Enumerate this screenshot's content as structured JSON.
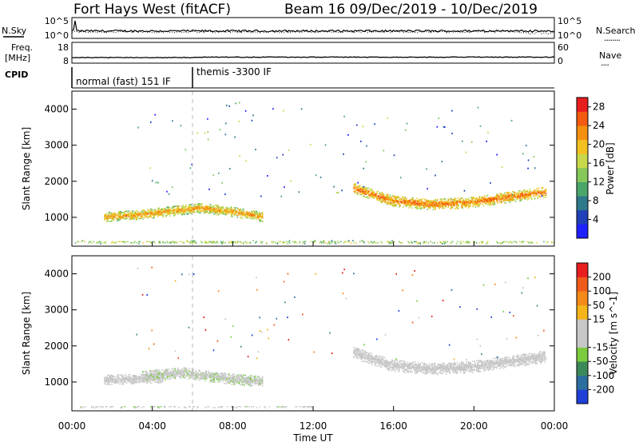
{
  "header": {
    "station": "Fort Hays West (fitACF)",
    "beam_date": "Beam 16  09/Dec/2019 - 10/Dec/2019"
  },
  "nsky_panel": {
    "left_label": "N.Sky",
    "left_ticks": [
      "10^5",
      "10^0"
    ],
    "right_ticks": [
      "10^5",
      "10^0"
    ],
    "right_label": "N.Search",
    "right_dots": "........"
  },
  "freq_panel": {
    "left_label_1": "Freq.",
    "left_label_2": "[MHz]",
    "left_ticks": [
      "18",
      "8"
    ],
    "right_ticks": [
      "60",
      "0"
    ],
    "right_label": "Nave",
    "right_dots": "...."
  },
  "cpid_panel": {
    "label": "CPID",
    "modes": [
      "normal (fast) 151 IF",
      "themis -3300 IF"
    ]
  },
  "axes": {
    "ylabel": "Slant Range [km]",
    "y_ticks": [
      "1000",
      "2000",
      "3000",
      "4000"
    ],
    "x_ticks": [
      "00:00",
      "04:00",
      "08:00",
      "12:00",
      "16:00",
      "20:00",
      "00:00"
    ],
    "xlabel": "Time UT"
  },
  "power_colorbar": {
    "label": "Power [dB]",
    "ticks": [
      "4",
      "8",
      "12",
      "16",
      "20",
      "24",
      "28"
    ],
    "colors": [
      "#1f1fff",
      "#2040b8",
      "#2e7a8a",
      "#4aa66a",
      "#86c85a",
      "#c8d84a",
      "#f4c020",
      "#f49010",
      "#f45a10",
      "#e81e1e"
    ]
  },
  "velocity_colorbar": {
    "label": "Velocity [m s^-1]",
    "ticks": [
      "200",
      "100",
      "50",
      "15",
      "-15",
      "-50",
      "-100",
      "-200"
    ],
    "colors": [
      "#1f3fd8",
      "#2c6ea0",
      "#3c8a5a",
      "#7acc3e",
      "#c8c8c8",
      "#c8c8c8",
      "#f4b41a",
      "#f48a1a",
      "#f05a1a",
      "#e81e1e"
    ]
  },
  "chart_data": [
    {
      "type": "heatmap",
      "panel": "power",
      "x_range_hours": [
        0,
        24
      ],
      "y_range_km": [
        200,
        4500
      ],
      "color_range_db": [
        0,
        30
      ],
      "regions": [
        {
          "t_start": 1.6,
          "t_end": 9.5,
          "range_center_km": [
            1000,
            1050,
            1150,
            1250,
            1150,
            1000
          ],
          "thickness_km": 260,
          "power_db": 20
        },
        {
          "t_start": 14.0,
          "t_end": 23.6,
          "range_center_km": [
            1800,
            1450,
            1350,
            1400,
            1550,
            1700
          ],
          "thickness_km": 300,
          "power_db": 22
        },
        {
          "t_start": 0.0,
          "t_end": 24.0,
          "range_center_km": [
            300,
            300
          ],
          "thickness_km": 140,
          "power_db": 14
        }
      ]
    },
    {
      "type": "heatmap",
      "panel": "velocity",
      "x_range_hours": [
        0,
        24
      ],
      "y_range_km": [
        200,
        4500
      ],
      "color_range_ms": [
        -200,
        200
      ],
      "regions": [
        {
          "t_start": 1.6,
          "t_end": 4.5,
          "range_center_km": [
            1050,
            1100
          ],
          "thickness_km": 260,
          "velocity_ms": 0
        },
        {
          "t_start": 3.5,
          "t_end": 9.5,
          "range_center_km": [
            1150,
            1250,
            1100,
            1000
          ],
          "thickness_km": 300,
          "velocity_ms": -30
        },
        {
          "t_start": 14.0,
          "t_end": 23.6,
          "range_center_km": [
            1800,
            1450,
            1350,
            1400,
            1550,
            1700
          ],
          "thickness_km": 320,
          "velocity_ms": 0
        },
        {
          "t_start": 0.0,
          "t_end": 12.0,
          "range_center_km": [
            300,
            300
          ],
          "thickness_km": 100,
          "velocity_ms": -30
        }
      ]
    }
  ]
}
